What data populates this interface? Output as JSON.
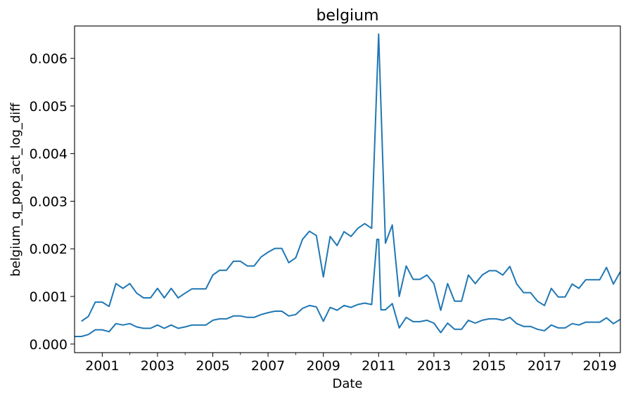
{
  "chart_data": {
    "type": "line",
    "title": "belgium",
    "xlabel": "Date",
    "ylabel": "belgium_q_pop_act_log_diff",
    "xlim": [
      "2000-01-01",
      "2019-10-01"
    ],
    "ylim": [
      -0.00018,
      0.00668
    ],
    "grid": false,
    "line_color": "#1f77b4",
    "x_ticks": [
      {
        "date": "2001-01-01",
        "label": "2001"
      },
      {
        "date": "2003-01-01",
        "label": "2003"
      },
      {
        "date": "2005-01-01",
        "label": "2005"
      },
      {
        "date": "2007-01-01",
        "label": "2007"
      },
      {
        "date": "2009-01-01",
        "label": "2009"
      },
      {
        "date": "2011-01-01",
        "label": "2011"
      },
      {
        "date": "2013-01-01",
        "label": "2013"
      },
      {
        "date": "2015-01-01",
        "label": "2015"
      },
      {
        "date": "2017-01-01",
        "label": "2017"
      },
      {
        "date": "2019-01-01",
        "label": "2019"
      }
    ],
    "x_minor_ticks": [
      "2002-01-01",
      "2004-01-01",
      "2006-01-01",
      "2008-01-01",
      "2010-01-01",
      "2012-01-01",
      "2014-01-01",
      "2016-01-01",
      "2018-01-01"
    ],
    "y_ticks": [
      {
        "value": 0.0,
        "label": "0.000"
      },
      {
        "value": 0.001,
        "label": "0.001"
      },
      {
        "value": 0.002,
        "label": "0.002"
      },
      {
        "value": 0.003,
        "label": "0.003"
      },
      {
        "value": 0.004,
        "label": "0.004"
      },
      {
        "value": 0.005,
        "label": "0.005"
      },
      {
        "value": 0.006,
        "label": "0.006"
      }
    ],
    "series": [
      {
        "points": [
          [
            "2000-04-01",
            0.00048
          ],
          [
            "2000-07-01",
            0.00058
          ],
          [
            "2000-10-01",
            0.00088
          ],
          [
            "2001-01-01",
            0.00088
          ],
          [
            "2001-04-01",
            0.00079
          ],
          [
            "2001-07-01",
            0.00127
          ],
          [
            "2001-10-01",
            0.00117
          ],
          [
            "2002-01-01",
            0.00127
          ],
          [
            "2002-04-01",
            0.00107
          ],
          [
            "2002-07-01",
            0.00097
          ],
          [
            "2002-10-01",
            0.00097
          ],
          [
            "2003-01-01",
            0.00117
          ],
          [
            "2003-04-01",
            0.00097
          ],
          [
            "2003-07-01",
            0.00117
          ],
          [
            "2003-10-01",
            0.00097
          ],
          [
            "2004-01-01",
            0.00107
          ],
          [
            "2004-04-01",
            0.00116
          ],
          [
            "2004-07-01",
            0.00116
          ],
          [
            "2004-10-01",
            0.00116
          ],
          [
            "2005-01-01",
            0.00145
          ],
          [
            "2005-04-01",
            0.00155
          ],
          [
            "2005-07-01",
            0.00155
          ],
          [
            "2005-10-01",
            0.00174
          ],
          [
            "2006-01-01",
            0.00174
          ],
          [
            "2006-04-01",
            0.00164
          ],
          [
            "2006-07-01",
            0.00164
          ],
          [
            "2006-10-01",
            0.00183
          ],
          [
            "2007-01-01",
            0.00193
          ],
          [
            "2007-04-01",
            0.00201
          ],
          [
            "2007-07-01",
            0.00201
          ],
          [
            "2007-10-01",
            0.00171
          ],
          [
            "2008-01-01",
            0.00181
          ],
          [
            "2008-04-01",
            0.0022
          ],
          [
            "2008-07-01",
            0.00237
          ],
          [
            "2008-10-01",
            0.00228
          ],
          [
            "2009-01-01",
            0.00141
          ],
          [
            "2009-04-01",
            0.00226
          ],
          [
            "2009-07-01",
            0.00207
          ],
          [
            "2009-10-01",
            0.00236
          ],
          [
            "2010-01-01",
            0.00226
          ],
          [
            "2010-04-01",
            0.00243
          ],
          [
            "2010-07-01",
            0.00253
          ],
          [
            "2010-10-01",
            0.00243
          ],
          [
            "2011-01-01",
            0.00651
          ],
          [
            "2011-04-01",
            0.00212
          ],
          [
            "2011-07-01",
            0.0025
          ],
          [
            "2011-10-01",
            0.001
          ],
          [
            "2012-01-01",
            0.00164
          ],
          [
            "2012-04-01",
            0.00136
          ],
          [
            "2012-07-01",
            0.00136
          ],
          [
            "2012-10-01",
            0.00145
          ],
          [
            "2013-01-01",
            0.00127
          ],
          [
            "2013-04-01",
            0.00071
          ],
          [
            "2013-07-01",
            0.00127
          ],
          [
            "2013-10-01",
            0.0009
          ],
          [
            "2014-01-01",
            0.0009
          ],
          [
            "2014-04-01",
            0.00145
          ],
          [
            "2014-07-01",
            0.00127
          ],
          [
            "2014-10-01",
            0.00145
          ],
          [
            "2015-01-01",
            0.00154
          ],
          [
            "2015-04-01",
            0.00154
          ],
          [
            "2015-07-01",
            0.00145
          ],
          [
            "2015-10-01",
            0.00163
          ],
          [
            "2016-01-01",
            0.00126
          ],
          [
            "2016-04-01",
            0.00108
          ],
          [
            "2016-07-01",
            0.00108
          ],
          [
            "2016-10-01",
            0.0009
          ],
          [
            "2017-01-01",
            0.00081
          ],
          [
            "2017-04-01",
            0.00117
          ],
          [
            "2017-07-01",
            0.00099
          ],
          [
            "2017-10-01",
            0.00099
          ],
          [
            "2018-01-01",
            0.00126
          ],
          [
            "2018-04-01",
            0.00117
          ],
          [
            "2018-07-01",
            0.00135
          ],
          [
            "2018-10-01",
            0.00135
          ],
          [
            "2019-01-01",
            0.00135
          ],
          [
            "2019-04-01",
            0.00161
          ],
          [
            "2019-07-01",
            0.00126
          ],
          [
            "2019-10-01",
            0.00152
          ]
        ]
      },
      {
        "points": [
          [
            "2000-01-01",
            0.00016
          ],
          [
            "2000-04-01",
            0.00016
          ],
          [
            "2000-07-01",
            0.0002
          ],
          [
            "2000-10-01",
            0.0003
          ],
          [
            "2001-01-01",
            0.0003
          ],
          [
            "2001-04-01",
            0.00026
          ],
          [
            "2001-07-01",
            0.00043
          ],
          [
            "2001-10-01",
            0.0004
          ],
          [
            "2002-01-01",
            0.00043
          ],
          [
            "2002-04-01",
            0.00036
          ],
          [
            "2002-07-01",
            0.00033
          ],
          [
            "2002-10-01",
            0.00033
          ],
          [
            "2003-01-01",
            0.0004
          ],
          [
            "2003-04-01",
            0.00033
          ],
          [
            "2003-07-01",
            0.0004
          ],
          [
            "2003-10-01",
            0.00033
          ],
          [
            "2004-01-01",
            0.00036
          ],
          [
            "2004-04-01",
            0.0004
          ],
          [
            "2004-07-01",
            0.0004
          ],
          [
            "2004-10-01",
            0.0004
          ],
          [
            "2005-01-01",
            0.0005
          ],
          [
            "2005-04-01",
            0.00053
          ],
          [
            "2005-07-01",
            0.00053
          ],
          [
            "2005-10-01",
            0.00059
          ],
          [
            "2006-01-01",
            0.00059
          ],
          [
            "2006-04-01",
            0.00056
          ],
          [
            "2006-07-01",
            0.00056
          ],
          [
            "2006-10-01",
            0.00062
          ],
          [
            "2007-01-01",
            0.00066
          ],
          [
            "2007-04-01",
            0.00069
          ],
          [
            "2007-07-01",
            0.00069
          ],
          [
            "2007-10-01",
            0.00059
          ],
          [
            "2008-01-01",
            0.00062
          ],
          [
            "2008-04-01",
            0.00075
          ],
          [
            "2008-07-01",
            0.00081
          ],
          [
            "2008-10-01",
            0.00078
          ],
          [
            "2009-01-01",
            0.00048
          ],
          [
            "2009-04-01",
            0.00077
          ],
          [
            "2009-07-01",
            0.00071
          ],
          [
            "2009-10-01",
            0.00081
          ],
          [
            "2010-01-01",
            0.00077
          ],
          [
            "2010-04-01",
            0.00083
          ],
          [
            "2010-07-01",
            0.00086
          ],
          [
            "2010-10-01",
            0.00083
          ],
          [
            "2010-12-10",
            0.0022
          ],
          [
            "2011-01-01",
            0.0022
          ],
          [
            "2011-02-01",
            0.00072
          ],
          [
            "2011-04-01",
            0.00072
          ],
          [
            "2011-07-01",
            0.00085
          ],
          [
            "2011-10-01",
            0.00034
          ],
          [
            "2012-01-01",
            0.00056
          ],
          [
            "2012-04-01",
            0.00047
          ],
          [
            "2012-07-01",
            0.00047
          ],
          [
            "2012-10-01",
            0.0005
          ],
          [
            "2013-01-01",
            0.00044
          ],
          [
            "2013-04-01",
            0.00024
          ],
          [
            "2013-07-01",
            0.00044
          ],
          [
            "2013-10-01",
            0.00031
          ],
          [
            "2014-01-01",
            0.00031
          ],
          [
            "2014-04-01",
            0.0005
          ],
          [
            "2014-07-01",
            0.00044
          ],
          [
            "2014-10-01",
            0.0005
          ],
          [
            "2015-01-01",
            0.00053
          ],
          [
            "2015-04-01",
            0.00053
          ],
          [
            "2015-07-01",
            0.0005
          ],
          [
            "2015-10-01",
            0.00056
          ],
          [
            "2016-01-01",
            0.00043
          ],
          [
            "2016-04-01",
            0.00037
          ],
          [
            "2016-07-01",
            0.00037
          ],
          [
            "2016-10-01",
            0.00031
          ],
          [
            "2017-01-01",
            0.00028
          ],
          [
            "2017-04-01",
            0.0004
          ],
          [
            "2017-07-01",
            0.00034
          ],
          [
            "2017-10-01",
            0.00034
          ],
          [
            "2018-01-01",
            0.00043
          ],
          [
            "2018-04-01",
            0.0004
          ],
          [
            "2018-07-01",
            0.00046
          ],
          [
            "2018-10-01",
            0.00046
          ],
          [
            "2019-01-01",
            0.00046
          ],
          [
            "2019-04-01",
            0.00055
          ],
          [
            "2019-07-01",
            0.00043
          ],
          [
            "2019-10-01",
            0.00052
          ]
        ]
      }
    ]
  }
}
